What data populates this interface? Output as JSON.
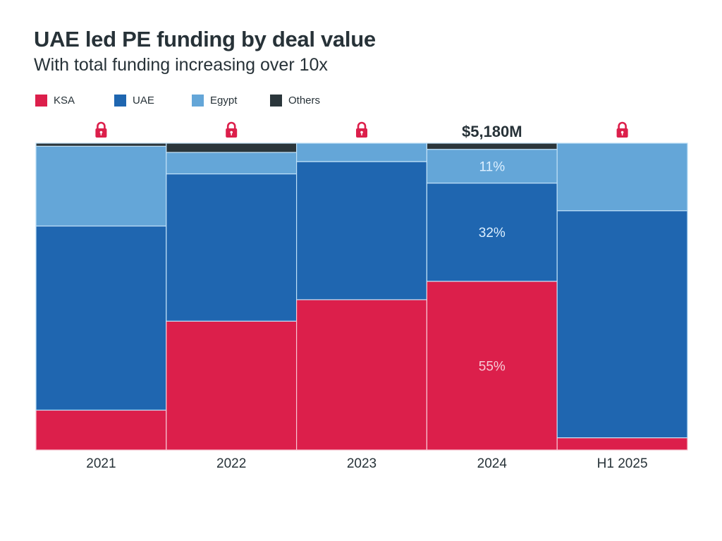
{
  "header": {
    "title": "UAE led PE funding by deal value",
    "subtitle": "With total funding increasing over 10x"
  },
  "colors": {
    "KSA": "#DC1F4B",
    "UAE": "#1F66B0",
    "Egypt": "#64A6D8",
    "Others": "#2B363B",
    "lock": "#DC1F4B",
    "text": "#273238"
  },
  "chart_data": {
    "type": "bar",
    "subtype": "100% stacked (mekko-style, equal widths)",
    "title": "UAE led PE funding by deal value",
    "subtitle": "With total funding increasing over 10x",
    "xlabel": "",
    "ylabel": "",
    "ylim": [
      0,
      100
    ],
    "grid": false,
    "legend_position": "top-left",
    "categories": [
      "2021",
      "2022",
      "2023",
      "2024",
      "H1 2025"
    ],
    "series": [
      {
        "name": "KSA",
        "values": [
          13,
          42,
          49,
          55,
          4
        ]
      },
      {
        "name": "UAE",
        "values": [
          60,
          48,
          45,
          32,
          74
        ]
      },
      {
        "name": "Egypt",
        "values": [
          26,
          7,
          6,
          11,
          22
        ]
      },
      {
        "name": "Others",
        "values": [
          1,
          3,
          0,
          2,
          0
        ]
      }
    ],
    "top_labels": [
      "lock",
      "lock",
      "lock",
      "$5,180M",
      "lock"
    ],
    "data_labels": [
      {
        "category": "2024",
        "series": "Egypt",
        "text": "11%"
      },
      {
        "category": "2024",
        "series": "UAE",
        "text": "32%"
      },
      {
        "category": "2024",
        "series": "KSA",
        "text": "55%"
      }
    ]
  },
  "legend": [
    {
      "key": "KSA",
      "label": "KSA"
    },
    {
      "key": "UAE",
      "label": "UAE"
    },
    {
      "key": "Egypt",
      "label": "Egypt"
    },
    {
      "key": "Others",
      "label": "Others"
    }
  ]
}
